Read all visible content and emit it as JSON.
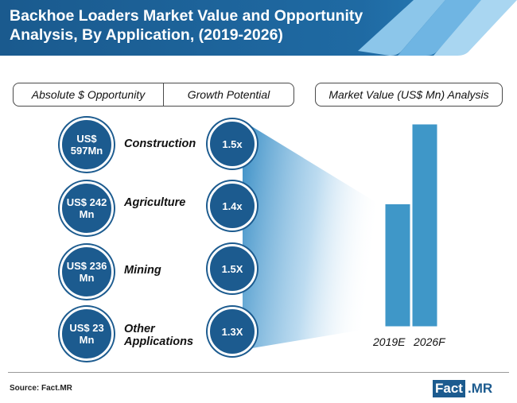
{
  "header": {
    "title_line1": "Backhoe Loaders Market Value and Opportunity",
    "title_line2": "Analysis, By Application, (2019-2026)"
  },
  "columns": {
    "absolute_label": "Absolute $ Opportunity",
    "growth_label": "Growth Potential",
    "market_value_label": "Market Value (US$ Mn) Analysis"
  },
  "applications": [
    {
      "name": "Construction",
      "name_line2": "",
      "opportunity_line1": "US$",
      "opportunity_line2": "597Mn",
      "growth": "1.5x"
    },
    {
      "name": "Agriculture",
      "name_line2": "",
      "opportunity_line1": "US$ 242",
      "opportunity_line2": "Mn",
      "growth": "1.4x"
    },
    {
      "name": "Mining",
      "name_line2": "",
      "opportunity_line1": "US$ 236",
      "opportunity_line2": "Mn",
      "growth": "1.5X"
    },
    {
      "name": "Other",
      "name_line2": "Applications",
      "opportunity_line1": "US$ 23",
      "opportunity_line2": "Mn",
      "growth": "1.3X"
    }
  ],
  "chart_data": {
    "type": "bar",
    "title": "Market Value (US$ Mn) Analysis",
    "categories": [
      "2019E",
      "2026F"
    ],
    "values": [
      1,
      1.65
    ],
    "ylim": [
      0,
      1.65
    ],
    "color": "#3f97c8"
  },
  "footer": {
    "source": "Source: Fact.MR",
    "logo_part1": "Fact",
    "logo_part2": ".MR"
  },
  "colors": {
    "brand_dark": "#1c5b8f",
    "brand_light": "#3f97c8"
  }
}
